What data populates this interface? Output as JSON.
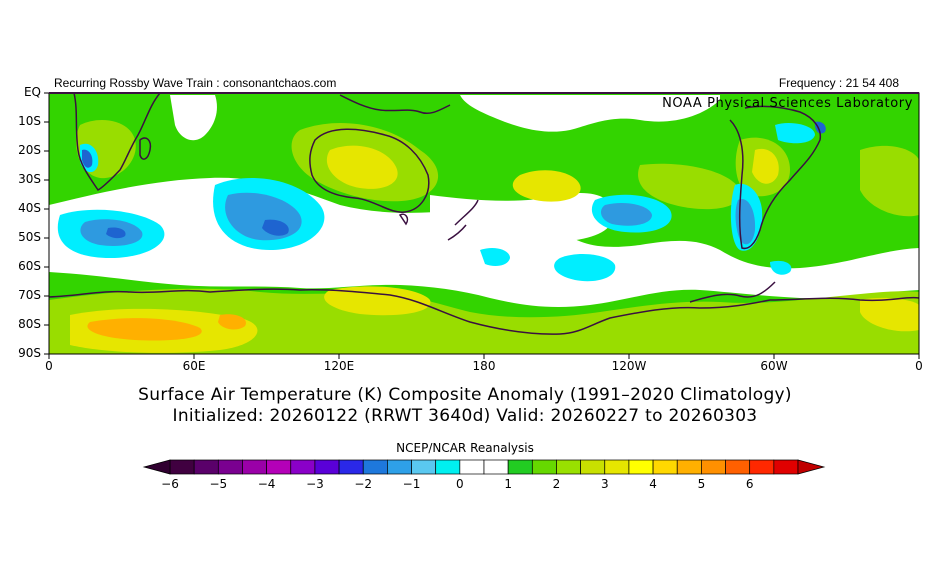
{
  "header": {
    "left": "Recurring Rossby Wave Train : consonantchaos.com",
    "right": "Frequency : 21 54 408",
    "lab": "NOAA Physical Sciences Laboratory"
  },
  "map": {
    "lat_labels": [
      "EQ",
      "10S",
      "20S",
      "30S",
      "40S",
      "50S",
      "60S",
      "70S",
      "80S",
      "90S"
    ],
    "lon_labels": [
      "0",
      "60E",
      "120E",
      "180",
      "120W",
      "60W",
      "0"
    ]
  },
  "title": {
    "line1": "Surface Air Temperature (K) Composite Anomaly (1991–2020 Climatology)",
    "line2": "Initialized: 20260122 (RRWT 3640d) Valid: 20260227 to 20260303"
  },
  "colorbar": {
    "label": "NCEP/NCAR Reanalysis",
    "tick_labels": [
      "−6",
      "−5",
      "−4",
      "−3",
      "−2",
      "−1",
      "0",
      "1",
      "2",
      "3",
      "4",
      "5",
      "6"
    ],
    "colors": [
      "#400040",
      "#5a006a",
      "#7a0090",
      "#9a00a8",
      "#b400b8",
      "#8a00c8",
      "#5a00d8",
      "#2a28e8",
      "#1e78dc",
      "#2ea0e8",
      "#5ac8f0",
      "#00f0f0",
      "#ffffff",
      "#ffffff",
      "#22cc22",
      "#66d800",
      "#99e000",
      "#c8e000",
      "#e6e600",
      "#ffff00",
      "#ffd800",
      "#ffb000",
      "#ff9000",
      "#ff6000",
      "#ff2800",
      "#e00000"
    ],
    "low_arrow_color": "#300030",
    "high_arrow_color": "#c00000"
  },
  "legend_colors": {
    "land_outline": "#3a1040",
    "cold_deep": "#1e64d0",
    "cold": "#2e9ae0",
    "cold_light": "#00eeff",
    "warm_light": "#33d400",
    "warm": "#99dd00",
    "warm_strong": "#e6e600",
    "warm_stronger": "#ffd000",
    "warm_max": "#ff9a00"
  }
}
